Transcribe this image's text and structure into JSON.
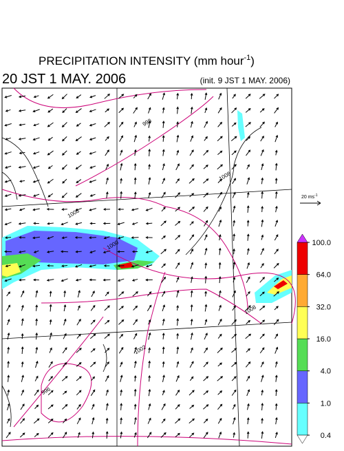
{
  "title": {
    "text": "PRECIPITATION INTENSITY (mm hour",
    "sup": "-1",
    "close": ")"
  },
  "valid_time": "20 JST 1 MAY. 2006",
  "init_time": "(init. 9 JST 1 MAY. 2006)",
  "vector_legend": {
    "text": "20 ms",
    "sup": "-1"
  },
  "colorbar": {
    "levels": [
      {
        "value": 0.4,
        "label": "0.4"
      },
      {
        "value": 1,
        "label": "1.0"
      },
      {
        "value": 4,
        "label": "4.0"
      },
      {
        "value": 16,
        "label": "16.0"
      },
      {
        "value": 32,
        "label": "32.0"
      },
      {
        "value": 64,
        "label": "64.0"
      },
      {
        "value": 100,
        "label": "100.0"
      }
    ],
    "colors": [
      "#66ffff",
      "#6666ff",
      "#55dd55",
      "#ffff55",
      "#ffaa33",
      "#ee0000"
    ],
    "over_color": "#cc33ff",
    "under_color": "#ffffff"
  },
  "contour_labels": [
    "996",
    "1000",
    "1008",
    "1002",
    "998",
    "1008",
    "1008"
  ]
}
